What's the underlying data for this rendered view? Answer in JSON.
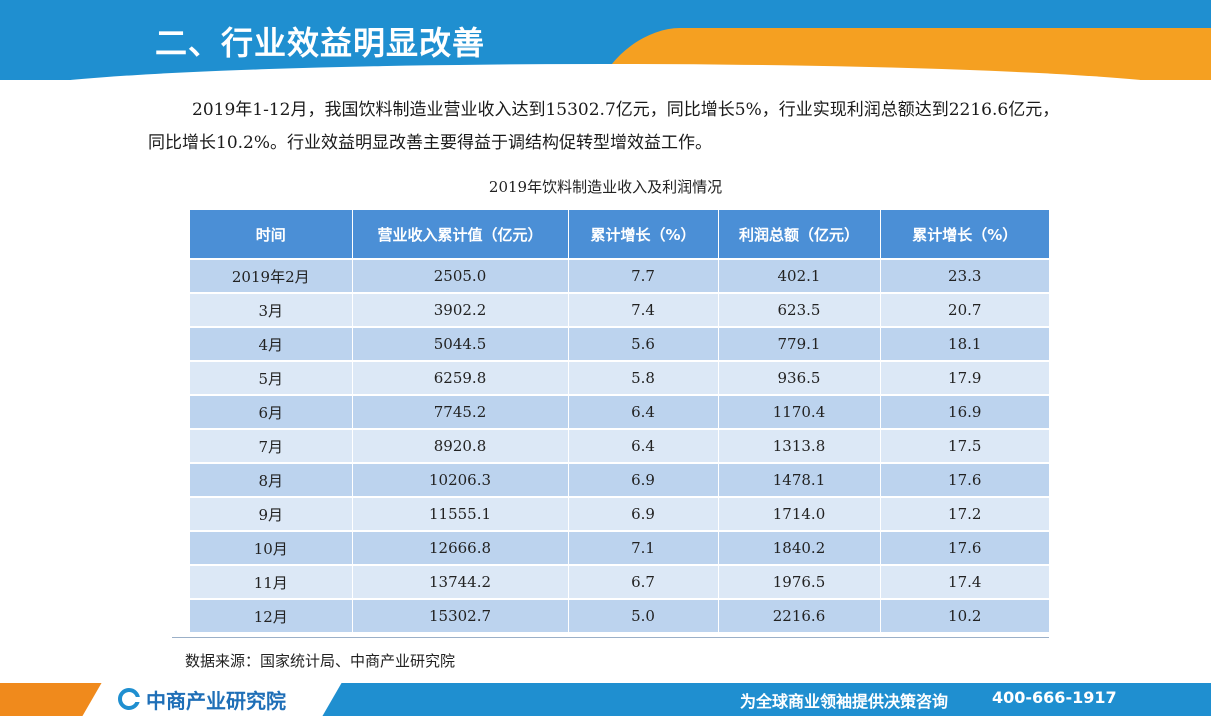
{
  "header": {
    "title": "二、行业效益明显改善"
  },
  "paragraph": "2019年1-12月，我国饮料制造业营业收入达到15302.7亿元，同比增长5%，行业实现利润总额达到2216.6亿元，同比增长10.2%。行业效益明显改善主要得益于调结构促转型增效益工作。",
  "table_title": "2019年饮料制造业收入及利润情况",
  "table": {
    "headers": [
      "时间",
      "营业收入累计值（亿元）",
      "累计增长（%）",
      "利润总额（亿元）",
      "累计增长（%）"
    ],
    "rows": [
      [
        "2019年2月",
        "2505.0",
        "7.7",
        "402.1",
        "23.3"
      ],
      [
        "3月",
        "3902.2",
        "7.4",
        "623.5",
        "20.7"
      ],
      [
        "4月",
        "5044.5",
        "5.6",
        "779.1",
        "18.1"
      ],
      [
        "5月",
        "6259.8",
        "5.8",
        "936.5",
        "17.9"
      ],
      [
        "6月",
        "7745.2",
        "6.4",
        "1170.4",
        "16.9"
      ],
      [
        "7月",
        "8920.8",
        "6.4",
        "1313.8",
        "17.5"
      ],
      [
        "8月",
        "10206.3",
        "6.9",
        "1478.1",
        "17.6"
      ],
      [
        "9月",
        "11555.1",
        "6.9",
        "1714.0",
        "17.2"
      ],
      [
        "10月",
        "12666.8",
        "7.1",
        "1840.2",
        "17.6"
      ],
      [
        "11月",
        "13744.2",
        "6.7",
        "1976.5",
        "17.4"
      ],
      [
        "12月",
        "15302.7",
        "5.0",
        "2216.6",
        "10.2"
      ]
    ]
  },
  "source": "数据来源：国家统计局、中商产业研究院",
  "footer": {
    "logo_text": "中商产业研究院",
    "slogan": "为全球商业领袖提供决策咨询",
    "phone": "400-666-1917"
  },
  "colors": {
    "header_blue": "#1f8fd0",
    "header_orange": "#f5a021",
    "table_header": "#4b8fd6",
    "row_dark": "#bcd3ee",
    "row_light": "#dce8f6"
  }
}
